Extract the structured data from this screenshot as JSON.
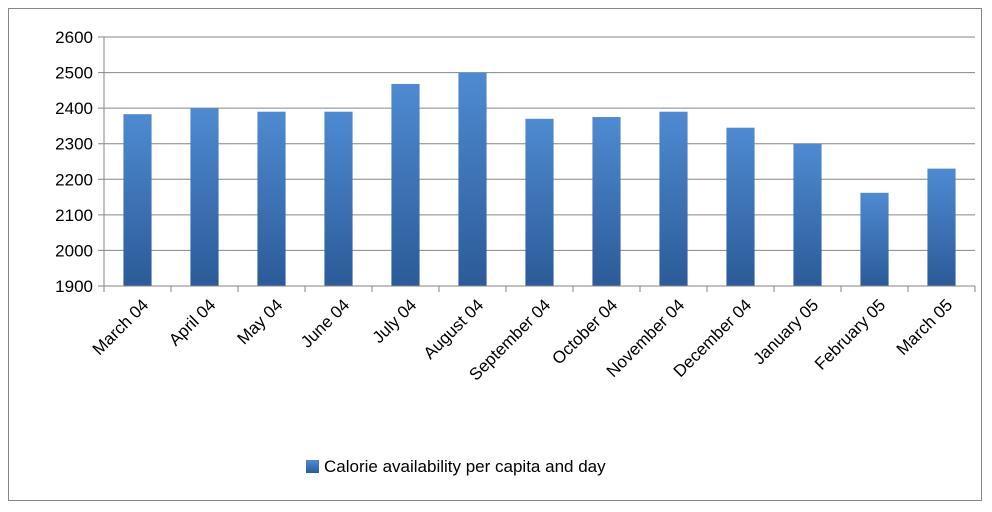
{
  "chart_data": {
    "type": "bar",
    "categories": [
      "March 04",
      "April 04",
      "May 04",
      "June 04",
      "July 04",
      "August 04",
      "September 04",
      "October 04",
      "November 04",
      "December 04",
      "January 05",
      "February 05",
      "March 05"
    ],
    "series": [
      {
        "name": "Calorie availability per capita and day",
        "values": [
          2383,
          2400,
          2390,
          2390,
          2468,
          2500,
          2370,
          2375,
          2390,
          2345,
          2300,
          2162,
          2230
        ],
        "color": "#4a7ebb"
      }
    ],
    "ylim": [
      1900,
      2600
    ],
    "yticks": [
      1900,
      2000,
      2100,
      2200,
      2300,
      2400,
      2500,
      2600
    ],
    "grid": true,
    "legend_position": "bottom"
  }
}
